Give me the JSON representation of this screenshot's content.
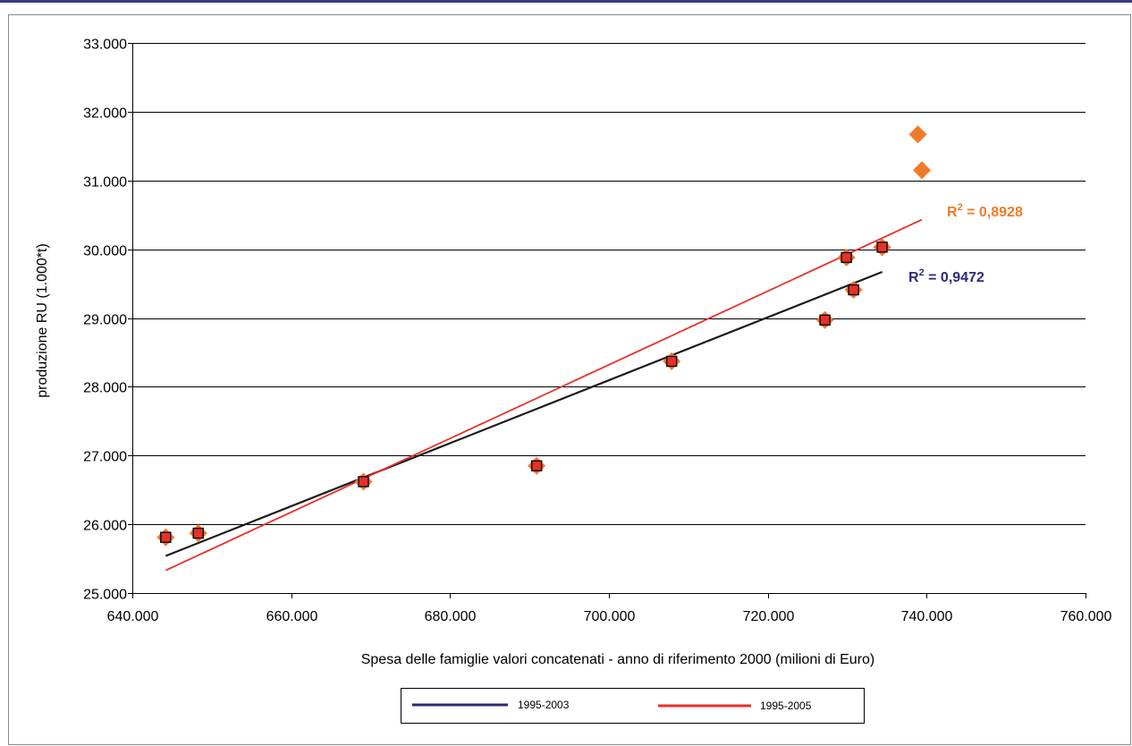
{
  "chart_data": {
    "type": "scatter",
    "xlabel": "Spesa delle famiglie valori concatenati - anno di riferimento 2000 (milioni di Euro)",
    "ylabel": "produzione RU (1.000*t)",
    "xlim": [
      640000,
      760000
    ],
    "ylim": [
      25000,
      33000
    ],
    "x_ticks": [
      640000,
      660000,
      680000,
      700000,
      720000,
      740000,
      760000
    ],
    "x_tick_labels": [
      "640.000",
      "660.000",
      "680.000",
      "700.000",
      "720.000",
      "740.000",
      "760.000"
    ],
    "y_ticks": [
      25000,
      26000,
      27000,
      28000,
      29000,
      30000,
      31000,
      32000,
      33000
    ],
    "y_tick_labels": [
      "25.000",
      "26.000",
      "27.000",
      "28.000",
      "29.000",
      "30.000",
      "31.000",
      "32.000",
      "33.000"
    ],
    "grid": "horizontal",
    "legend_position": "bottom",
    "series": [
      {
        "name": "1995-2005",
        "marker": "diamond",
        "color": "#f07a2a",
        "points": [
          [
            644200,
            25810
          ],
          [
            648300,
            25870
          ],
          [
            669100,
            26620
          ],
          [
            690900,
            26850
          ],
          [
            707900,
            28370
          ],
          [
            727200,
            28970
          ],
          [
            729900,
            29880
          ],
          [
            730800,
            29410
          ],
          [
            734400,
            30030
          ],
          [
            738900,
            31670
          ],
          [
            739400,
            31150
          ]
        ]
      },
      {
        "name": "1995-2003",
        "marker": "square",
        "color": "#e8302a",
        "points": [
          [
            644200,
            25810
          ],
          [
            648300,
            25870
          ],
          [
            669100,
            26620
          ],
          [
            690900,
            26850
          ],
          [
            707900,
            28370
          ],
          [
            727200,
            28970
          ],
          [
            729900,
            29880
          ],
          [
            730800,
            29410
          ],
          [
            734400,
            30030
          ]
        ]
      }
    ],
    "trendlines": [
      {
        "name": "1995-2003",
        "color": "#1a1a1a",
        "legend_color": "#2b2a78",
        "x": [
          644200,
          734400
        ],
        "y": [
          25540,
          29670
        ],
        "r2_label": "R² = 0,9472",
        "r2_color": "#2b2a78"
      },
      {
        "name": "1995-2005",
        "color": "#e8302a",
        "legend_color": "#e8302a",
        "x": [
          644200,
          739400
        ],
        "y": [
          25330,
          30430
        ],
        "r2_label": "R² = 0,8928",
        "r2_color": "#f07a2a"
      }
    ],
    "legend": [
      "1995-2003",
      "1995-2005"
    ]
  }
}
